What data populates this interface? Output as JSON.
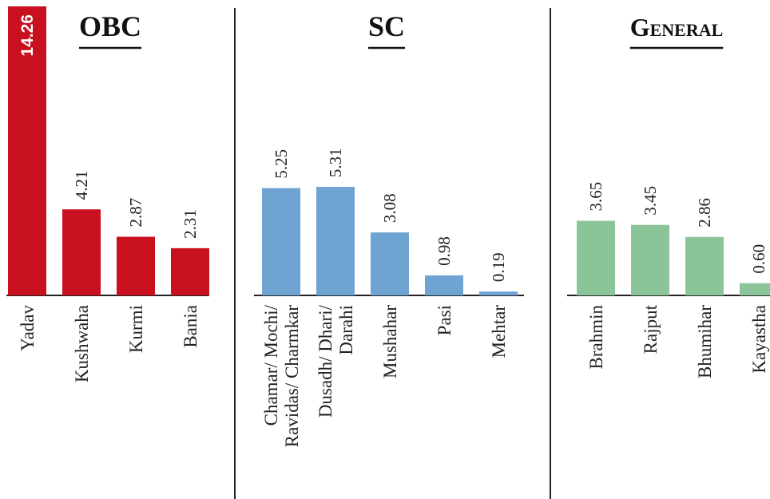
{
  "chart_data": {
    "type": "bar",
    "unit": "",
    "groups": [
      {
        "title": "OBC",
        "color": "#c8101e",
        "categories": [
          "Yadav",
          "Kushwaha",
          "Kurmi",
          "Bania"
        ],
        "values": [
          14.26,
          4.21,
          2.87,
          2.31
        ],
        "value_labels": [
          "14.26",
          "4.21",
          "2.87",
          "2.31"
        ]
      },
      {
        "title": "SC",
        "color": "#6fa3d2",
        "categories": [
          [
            "Chamar/ Mochi/",
            "Ravidas/ Charmkar"
          ],
          [
            "Dusadh/ Dhari/",
            "Darahi"
          ],
          [
            "Mushahar"
          ],
          [
            "Pasi"
          ],
          [
            "Mehtar"
          ]
        ],
        "values": [
          5.25,
          5.31,
          3.08,
          0.98,
          0.19
        ],
        "value_labels": [
          "5.25",
          "5.31",
          "3.08",
          "0.98",
          "0.19"
        ]
      },
      {
        "title": "General",
        "color": "#8cc49a",
        "categories": [
          "Brahmin",
          "Rajput",
          "Bhumihar",
          "Kayastha"
        ],
        "values": [
          3.65,
          3.45,
          2.86,
          0.6
        ],
        "value_labels": [
          "3.65",
          "3.45",
          "2.86",
          "0.60"
        ]
      }
    ],
    "grid": false,
    "legend": "none"
  }
}
